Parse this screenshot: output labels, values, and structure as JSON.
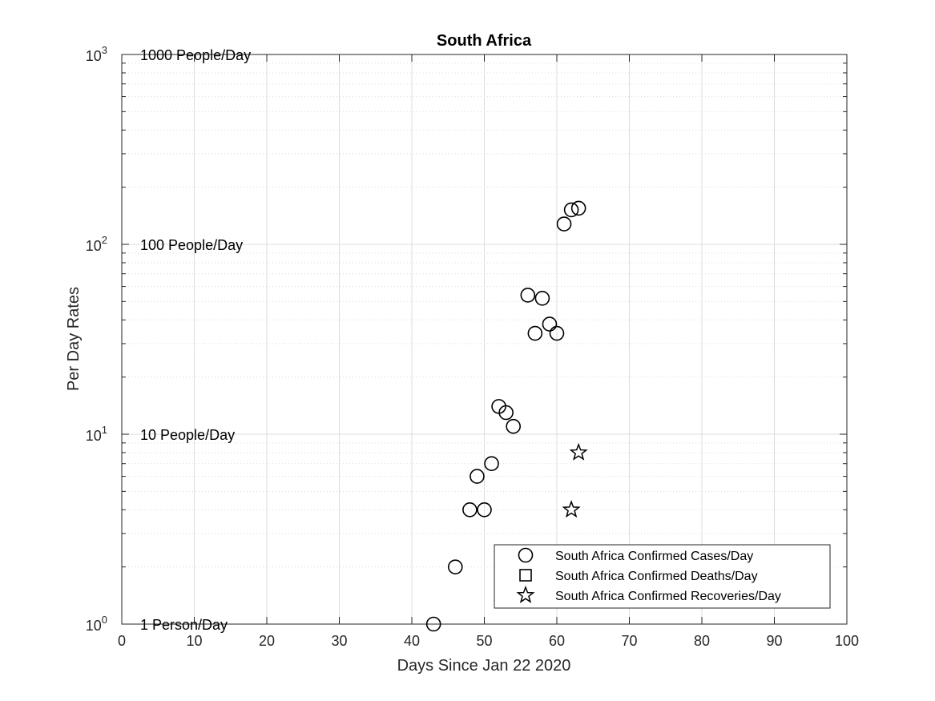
{
  "chart_data": {
    "type": "scatter",
    "title": "South Africa",
    "xlabel": "Days Since Jan 22 2020",
    "ylabel": "Per Day Rates",
    "xlim": [
      0,
      100
    ],
    "ylim": [
      1,
      1000
    ],
    "yscale": "log",
    "grid": true,
    "legend_location": "bottom-right",
    "x_ticks": [
      "0",
      "10",
      "20",
      "30",
      "40",
      "50",
      "60",
      "70",
      "80",
      "90",
      "100"
    ],
    "y_ticks": [
      {
        "base": "10",
        "exp": "0"
      },
      {
        "base": "10",
        "exp": "1"
      },
      {
        "base": "10",
        "exp": "2"
      },
      {
        "base": "10",
        "exp": "3"
      }
    ],
    "reference_labels": [
      {
        "text": "1 Person/Day",
        "y": 1
      },
      {
        "text": "10 People/Day",
        "y": 10
      },
      {
        "text": "100 People/Day",
        "y": 100
      },
      {
        "text": "1000 People/Day",
        "y": 1000
      }
    ],
    "series": [
      {
        "name": "South Africa Confirmed Cases/Day",
        "marker": "circle",
        "points": [
          {
            "x": 43,
            "y": 1
          },
          {
            "x": 46,
            "y": 2
          },
          {
            "x": 48,
            "y": 4
          },
          {
            "x": 49,
            "y": 6
          },
          {
            "x": 50,
            "y": 4
          },
          {
            "x": 51,
            "y": 7
          },
          {
            "x": 52,
            "y": 14
          },
          {
            "x": 53,
            "y": 13
          },
          {
            "x": 54,
            "y": 11
          },
          {
            "x": 56,
            "y": 54
          },
          {
            "x": 57,
            "y": 34
          },
          {
            "x": 58,
            "y": 52
          },
          {
            "x": 59,
            "y": 38
          },
          {
            "x": 60,
            "y": 34
          },
          {
            "x": 61,
            "y": 128
          },
          {
            "x": 62,
            "y": 152
          },
          {
            "x": 63,
            "y": 155
          }
        ]
      },
      {
        "name": "South Africa Confirmed Deaths/Day",
        "marker": "square",
        "points": []
      },
      {
        "name": "South Africa Confirmed Recoveries/Day",
        "marker": "star",
        "points": [
          {
            "x": 62,
            "y": 4
          },
          {
            "x": 63,
            "y": 8
          }
        ]
      }
    ]
  }
}
